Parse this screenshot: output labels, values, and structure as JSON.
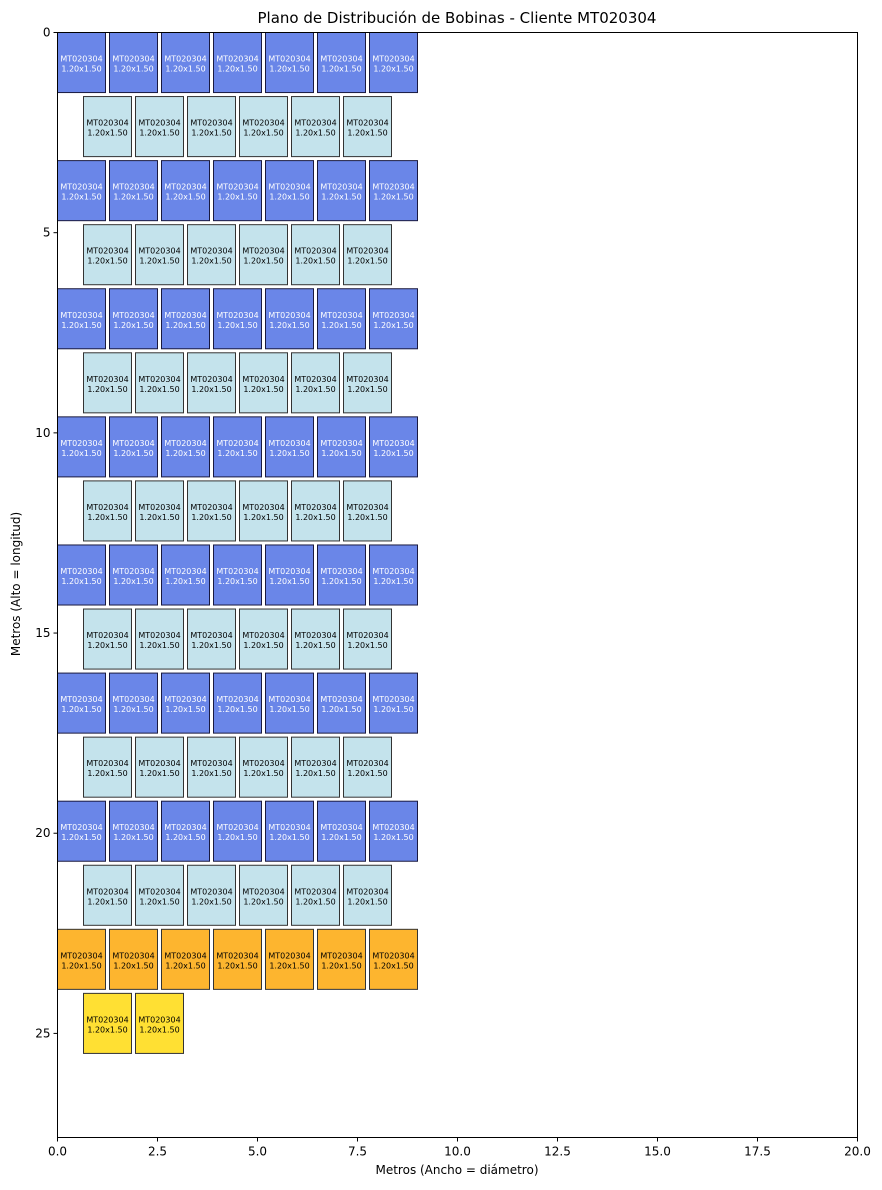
{
  "chart_data": {
    "type": "layout",
    "title": "Plano de Distribución de Bobinas - Cliente MT020304",
    "xlabel": "Metros (Ancho = diámetro)",
    "ylabel": "Metros (Alto = longitud)",
    "xlim": [
      0,
      20
    ],
    "ylim": [
      27.6,
      0
    ],
    "xticks": [
      0,
      2.5,
      5,
      7.5,
      10,
      12.5,
      15,
      17.5,
      20
    ],
    "xtick_labels": [
      "0.0",
      "2.5",
      "5.0",
      "7.5",
      "10.0",
      "12.5",
      "15.0",
      "17.5",
      "20.0"
    ],
    "yticks": [
      0,
      5,
      10,
      15,
      20,
      25
    ],
    "ytick_labels": [
      "0",
      "5",
      "10",
      "15",
      "20",
      "25"
    ],
    "coil_label": "MT020304",
    "coil_size_label": "1.20x1.50",
    "coil_width": 1.2,
    "coil_length": 1.5,
    "colors": {
      "row_full": "#6a86e8",
      "row_offset": "#c4e3ec",
      "row_orange": "#fdb52f",
      "row_yellow": "#ffe033",
      "edge_full": "#1a1a40",
      "edge_other": "#333333"
    },
    "rows": [
      {
        "y": 0.0,
        "xs": [
          0,
          1.3,
          2.6,
          3.9,
          5.2,
          6.5,
          7.8
        ],
        "color": "row_full",
        "text": "#ffffff"
      },
      {
        "y": 1.6,
        "xs": [
          0.65,
          1.95,
          3.25,
          4.55,
          5.85,
          7.15
        ],
        "color": "row_offset",
        "text": "#000000"
      },
      {
        "y": 3.2,
        "xs": [
          0,
          1.3,
          2.6,
          3.9,
          5.2,
          6.5,
          7.8
        ],
        "color": "row_full",
        "text": "#ffffff"
      },
      {
        "y": 4.8,
        "xs": [
          0.65,
          1.95,
          3.25,
          4.55,
          5.85,
          7.15
        ],
        "color": "row_offset",
        "text": "#000000"
      },
      {
        "y": 6.4,
        "xs": [
          0,
          1.3,
          2.6,
          3.9,
          5.2,
          6.5,
          7.8
        ],
        "color": "row_full",
        "text": "#ffffff"
      },
      {
        "y": 8.0,
        "xs": [
          0.65,
          1.95,
          3.25,
          4.55,
          5.85,
          7.15
        ],
        "color": "row_offset",
        "text": "#000000"
      },
      {
        "y": 9.6,
        "xs": [
          0,
          1.3,
          2.6,
          3.9,
          5.2,
          6.5,
          7.8
        ],
        "color": "row_full",
        "text": "#ffffff"
      },
      {
        "y": 11.2,
        "xs": [
          0.65,
          1.95,
          3.25,
          4.55,
          5.85,
          7.15
        ],
        "color": "row_offset",
        "text": "#000000"
      },
      {
        "y": 12.8,
        "xs": [
          0,
          1.3,
          2.6,
          3.9,
          5.2,
          6.5,
          7.8
        ],
        "color": "row_full",
        "text": "#ffffff"
      },
      {
        "y": 14.4,
        "xs": [
          0.65,
          1.95,
          3.25,
          4.55,
          5.85,
          7.15
        ],
        "color": "row_offset",
        "text": "#000000"
      },
      {
        "y": 16.0,
        "xs": [
          0,
          1.3,
          2.6,
          3.9,
          5.2,
          6.5,
          7.8
        ],
        "color": "row_full",
        "text": "#ffffff"
      },
      {
        "y": 17.6,
        "xs": [
          0.65,
          1.95,
          3.25,
          4.55,
          5.85,
          7.15
        ],
        "color": "row_offset",
        "text": "#000000"
      },
      {
        "y": 19.2,
        "xs": [
          0,
          1.3,
          2.6,
          3.9,
          5.2,
          6.5,
          7.8
        ],
        "color": "row_full",
        "text": "#ffffff"
      },
      {
        "y": 20.8,
        "xs": [
          0.65,
          1.95,
          3.25,
          4.55,
          5.85,
          7.15
        ],
        "color": "row_offset",
        "text": "#000000"
      },
      {
        "y": 22.4,
        "xs": [
          0,
          1.3,
          2.6,
          3.9,
          5.2,
          6.5,
          7.8
        ],
        "color": "row_orange",
        "text": "#000000"
      },
      {
        "y": 24.0,
        "xs": [
          0.65,
          1.95
        ],
        "color": "row_yellow",
        "text": "#000000"
      }
    ]
  }
}
